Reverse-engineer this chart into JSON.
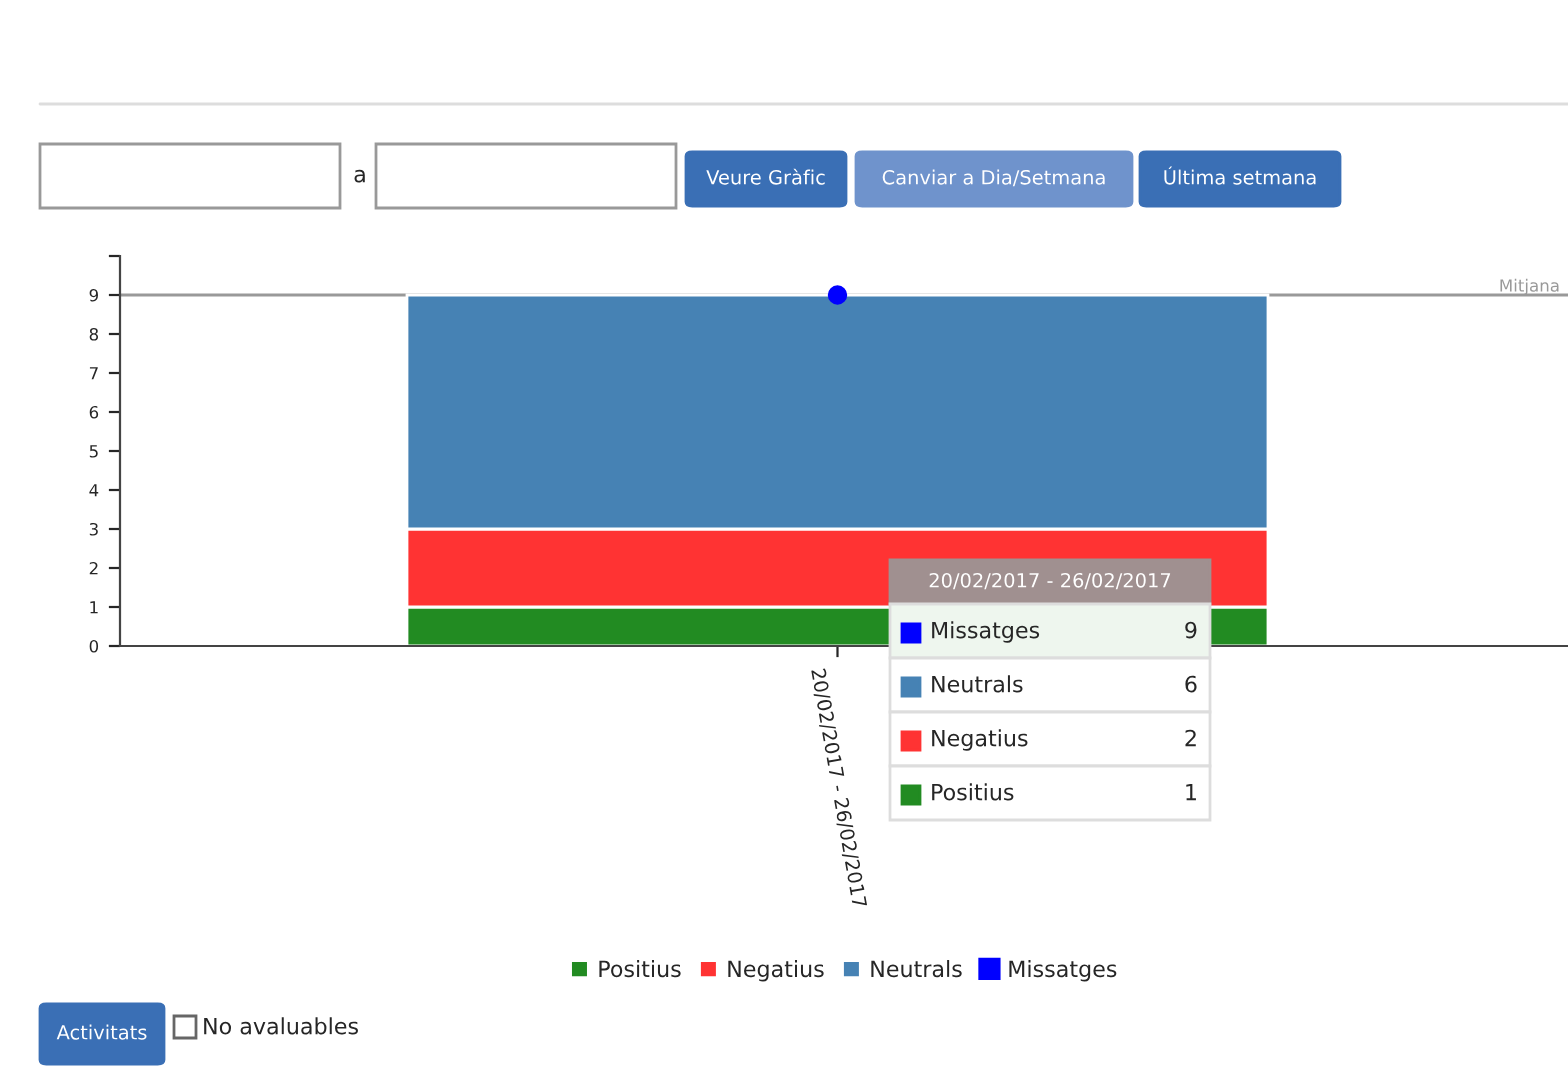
{
  "chart_data": {
    "type": "bar",
    "stacked": true,
    "categories": [
      "20/02/2017 - 26/02/2017"
    ],
    "series": [
      {
        "name": "Positius",
        "color": "#228b22",
        "values": [
          1
        ]
      },
      {
        "name": "Negatius",
        "color": "#ff3333",
        "values": [
          2
        ]
      },
      {
        "name": "Neutrals",
        "color": "#4682b4",
        "values": [
          6
        ]
      },
      {
        "name": "Missatges",
        "color": "#0000ff",
        "values": [
          9
        ],
        "type": "line",
        "marker": "circle"
      }
    ],
    "ylim": [
      0,
      10
    ],
    "yticks": [
      0,
      1,
      2,
      3,
      4,
      5,
      6,
      7,
      8,
      9,
      {
        "value": 10,
        "label": null
      }
    ],
    "ref_lines": [
      {
        "axis": "y",
        "value": 9,
        "label": "Mitjana",
        "color": "#999999"
      }
    ],
    "legend": "bottom",
    "grid": false,
    "annotations": [
      "a",
      "Veure Gràfic",
      "Canviar a Dia/Setmana",
      "Última setmana",
      "Activitats",
      "No avaluables",
      "9",
      "6",
      "2",
      "1"
    ]
  }
}
